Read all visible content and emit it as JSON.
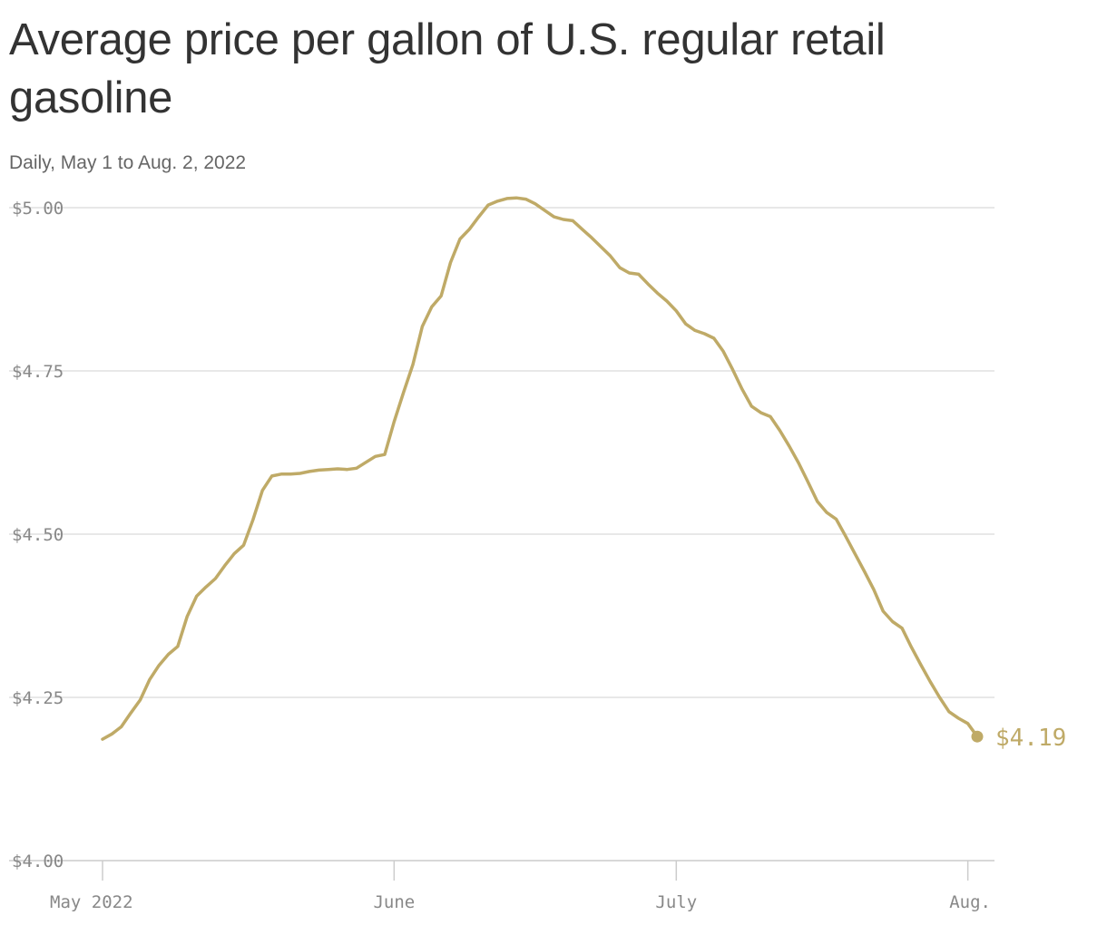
{
  "title": "Average price per gallon of U.S. regular retail gasoline",
  "subtitle": "Daily, May 1 to Aug. 2, 2022",
  "colors": {
    "line": "#bfaa67",
    "grid": "#e0e0e0",
    "axis_text": "#888888"
  },
  "chart_data": {
    "type": "line",
    "title": "Average price per gallon of U.S. regular retail gasoline",
    "subtitle": "Daily, May 1 to Aug. 2, 2022",
    "xlabel": "",
    "ylabel": "",
    "ylim": [
      4.0,
      5.0
    ],
    "xlim": [
      "2022-05-01",
      "2022-08-02"
    ],
    "yticks": [
      {
        "value": 5.0,
        "label": "$5.00"
      },
      {
        "value": 4.75,
        "label": "$4.75"
      },
      {
        "value": 4.5,
        "label": "$4.50"
      },
      {
        "value": 4.25,
        "label": "$4.25"
      },
      {
        "value": 4.0,
        "label": "$4.00"
      }
    ],
    "xticks": [
      {
        "date": "2022-05-01",
        "label": "May 2022"
      },
      {
        "date": "2022-06-01",
        "label": "June"
      },
      {
        "date": "2022-07-01",
        "label": "July"
      },
      {
        "date": "2022-08-01",
        "label": "Aug."
      }
    ],
    "grid": "horizontal",
    "end_label": "$4.19",
    "series": [
      {
        "points": [
          [
            "2022-05-01",
            4.186
          ],
          [
            "2022-05-02",
            4.194
          ],
          [
            "2022-05-03",
            4.205
          ],
          [
            "2022-05-04",
            4.226
          ],
          [
            "2022-05-05",
            4.246
          ],
          [
            "2022-05-06",
            4.277
          ],
          [
            "2022-05-07",
            4.299
          ],
          [
            "2022-05-08",
            4.316
          ],
          [
            "2022-05-09",
            4.328
          ],
          [
            "2022-05-10",
            4.374
          ],
          [
            "2022-05-11",
            4.405
          ],
          [
            "2022-05-12",
            4.419
          ],
          [
            "2022-05-13",
            4.432
          ],
          [
            "2022-05-14",
            4.452
          ],
          [
            "2022-05-15",
            4.47
          ],
          [
            "2022-05-16",
            4.483
          ],
          [
            "2022-05-17",
            4.522
          ],
          [
            "2022-05-18",
            4.567
          ],
          [
            "2022-05-19",
            4.589
          ],
          [
            "2022-05-20",
            4.592
          ],
          [
            "2022-05-21",
            4.592
          ],
          [
            "2022-05-22",
            4.593
          ],
          [
            "2022-05-23",
            4.596
          ],
          [
            "2022-05-24",
            4.598
          ],
          [
            "2022-05-25",
            4.599
          ],
          [
            "2022-05-26",
            4.6
          ],
          [
            "2022-05-27",
            4.599
          ],
          [
            "2022-05-28",
            4.601
          ],
          [
            "2022-05-29",
            4.61
          ],
          [
            "2022-05-30",
            4.619
          ],
          [
            "2022-05-31",
            4.622
          ],
          [
            "2022-06-01",
            4.672
          ],
          [
            "2022-06-02",
            4.717
          ],
          [
            "2022-06-03",
            4.76
          ],
          [
            "2022-06-04",
            4.818
          ],
          [
            "2022-06-05",
            4.848
          ],
          [
            "2022-06-06",
            4.865
          ],
          [
            "2022-06-07",
            4.916
          ],
          [
            "2022-06-08",
            4.952
          ],
          [
            "2022-06-09",
            4.967
          ],
          [
            "2022-06-10",
            4.986
          ],
          [
            "2022-06-11",
            5.004
          ],
          [
            "2022-06-12",
            5.01
          ],
          [
            "2022-06-13",
            5.014
          ],
          [
            "2022-06-14",
            5.015
          ],
          [
            "2022-06-15",
            5.013
          ],
          [
            "2022-06-16",
            5.006
          ],
          [
            "2022-06-17",
            4.996
          ],
          [
            "2022-06-18",
            4.986
          ],
          [
            "2022-06-19",
            4.982
          ],
          [
            "2022-06-20",
            4.98
          ],
          [
            "2022-06-21",
            4.967
          ],
          [
            "2022-06-22",
            4.954
          ],
          [
            "2022-06-23",
            4.94
          ],
          [
            "2022-06-24",
            4.926
          ],
          [
            "2022-06-25",
            4.908
          ],
          [
            "2022-06-26",
            4.9
          ],
          [
            "2022-06-27",
            4.898
          ],
          [
            "2022-06-28",
            4.883
          ],
          [
            "2022-06-29",
            4.869
          ],
          [
            "2022-06-30",
            4.857
          ],
          [
            "2022-07-01",
            4.842
          ],
          [
            "2022-07-02",
            4.822
          ],
          [
            "2022-07-03",
            4.812
          ],
          [
            "2022-07-04",
            4.807
          ],
          [
            "2022-07-05",
            4.8
          ],
          [
            "2022-07-06",
            4.78
          ],
          [
            "2022-07-07",
            4.752
          ],
          [
            "2022-07-08",
            4.722
          ],
          [
            "2022-07-09",
            4.696
          ],
          [
            "2022-07-10",
            4.686
          ],
          [
            "2022-07-11",
            4.68
          ],
          [
            "2022-07-12",
            4.659
          ],
          [
            "2022-07-13",
            4.635
          ],
          [
            "2022-07-14",
            4.609
          ],
          [
            "2022-07-15",
            4.58
          ],
          [
            "2022-07-16",
            4.55
          ],
          [
            "2022-07-17",
            4.533
          ],
          [
            "2022-07-18",
            4.523
          ],
          [
            "2022-07-19",
            4.497
          ],
          [
            "2022-07-20",
            4.47
          ],
          [
            "2022-07-21",
            4.443
          ],
          [
            "2022-07-22",
            4.415
          ],
          [
            "2022-07-23",
            4.382
          ],
          [
            "2022-07-24",
            4.366
          ],
          [
            "2022-07-25",
            4.356
          ],
          [
            "2022-07-26",
            4.327
          ],
          [
            "2022-07-27",
            4.3
          ],
          [
            "2022-07-28",
            4.274
          ],
          [
            "2022-07-29",
            4.25
          ],
          [
            "2022-07-30",
            4.228
          ],
          [
            "2022-07-31",
            4.218
          ],
          [
            "2022-08-01",
            4.21
          ],
          [
            "2022-08-02",
            4.19
          ]
        ]
      }
    ]
  }
}
